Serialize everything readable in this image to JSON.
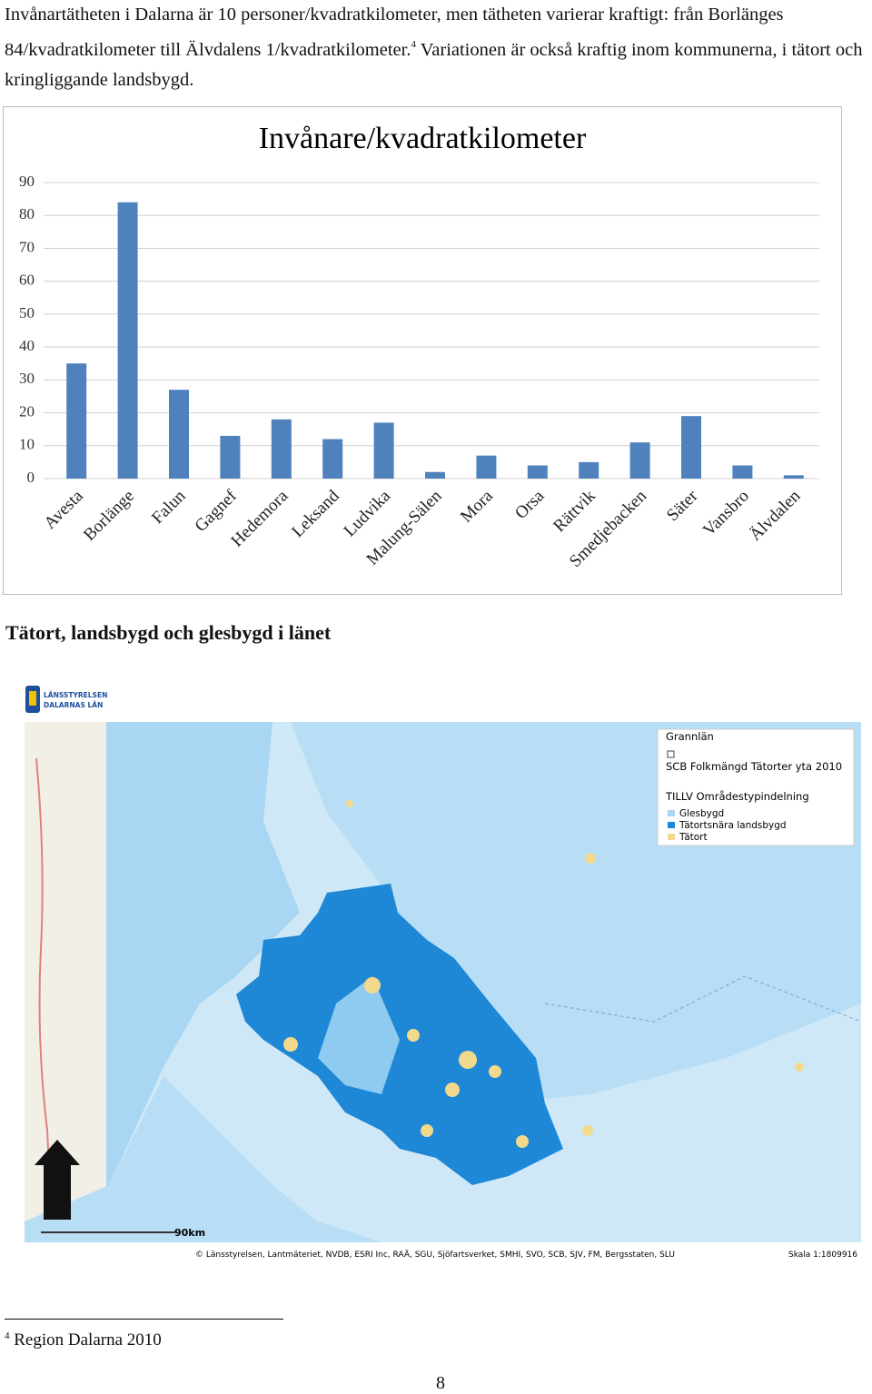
{
  "paragraph": {
    "text": "Invånartätheten i Dalarna är 10 personer/kvadratkilometer, men tätheten varierar kraftigt: från Borlänges 84/kvadratkilometer till Älvdalens 1/kvadratkilometer.",
    "footnote_ref": "4",
    "text_after": "Variationen är också kraftig inom kommunerna, i tätort och kringliggande landsbygd."
  },
  "chart_data": {
    "type": "bar",
    "title": "Invånare/kvadratkilometer",
    "categories": [
      "Avesta",
      "Borlänge",
      "Falun",
      "Gagnef",
      "Hedemora",
      "Leksand",
      "Ludvika",
      "Malung-Sälen",
      "Mora",
      "Orsa",
      "Rättvik",
      "Smedjebacken",
      "Säter",
      "Vansbro",
      "Älvdalen"
    ],
    "values": [
      35,
      84,
      27,
      13,
      18,
      12,
      17,
      2,
      7,
      4,
      5,
      11,
      19,
      4,
      1
    ],
    "color": "#4f81bd",
    "ylim": [
      0,
      90
    ],
    "yticks": [
      0,
      10,
      20,
      30,
      40,
      50,
      60,
      70,
      80,
      90
    ],
    "grid": true
  },
  "heading": "Tätort, landsbygd och glesbygd i länet",
  "map": {
    "logo_text": [
      "LÄNSSTYRELSEN",
      "DALARNAS LÄN"
    ],
    "legend": [
      "Grannlän",
      "SCB Folkmängd Tätorter yta 2010",
      "TILLV Områdestypindelning",
      "Glesbygd",
      "Tätortsnära landsbygd",
      "Tätort"
    ],
    "scale_bar": "90km",
    "credits": "© Länsstyrelsen, Lantmäteriet, NVDB, ESRI Inc, RAÄ, SGU, Sjöfartsverket, SMHI, SVO, SCB, SJV, FM, Bergsstaten, SLU",
    "scale": "Skala 1:1809916"
  },
  "footnote": {
    "number": "4",
    "text": "Region Dalarna 2010"
  },
  "page_number": "8"
}
